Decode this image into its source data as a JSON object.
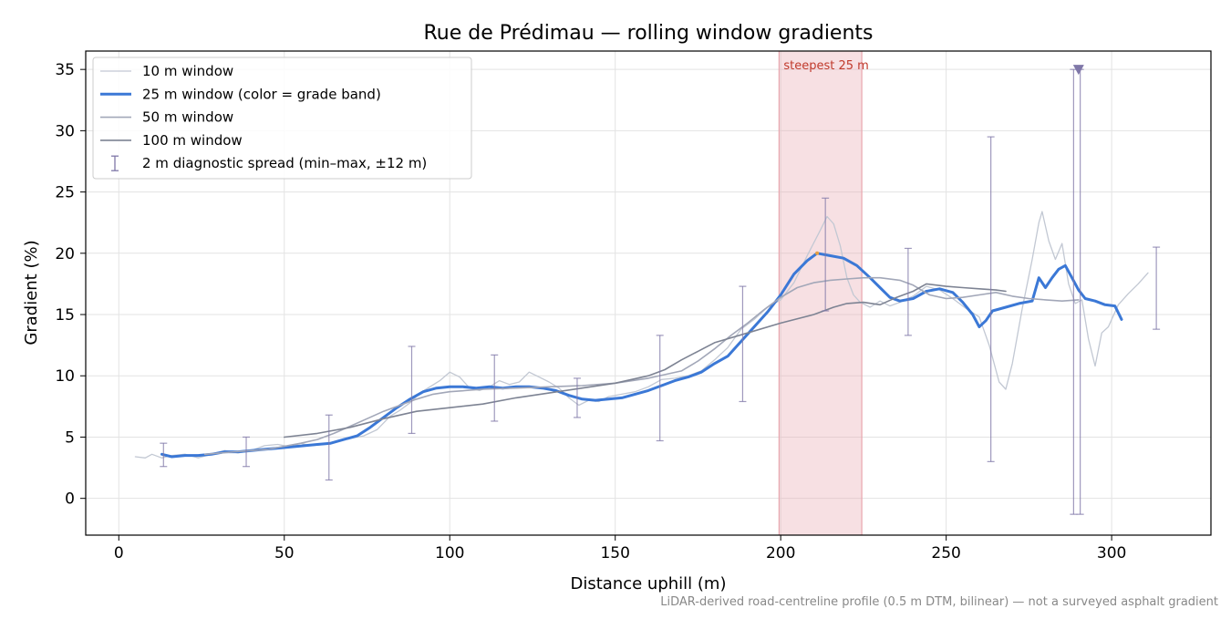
{
  "chart_data": {
    "type": "line",
    "title": "Rue de Prédimau — rolling window gradients",
    "xlabel": "Distance uphill (m)",
    "ylabel": "Gradient (%)",
    "xlim": [
      -10,
      330
    ],
    "ylim": [
      -3,
      36.5
    ],
    "xticks": [
      0,
      50,
      100,
      150,
      200,
      250,
      300
    ],
    "yticks": [
      0,
      5,
      10,
      15,
      20,
      25,
      30,
      35
    ],
    "grid": true,
    "legend_position": "top-left",
    "footnote": "LiDAR-derived road-centreline profile (0.5 m DTM, bilinear) — not a surveyed asphalt gradient",
    "highlight": {
      "x_start": 199.5,
      "x_end": 224.5,
      "label": "steepest 25 m",
      "color": "#e8a6ae"
    },
    "peak_marker": {
      "x": 290,
      "y": 35,
      "color": "#7f77a8"
    },
    "series": [
      {
        "name": "10 m window",
        "color": "#c2c8d3",
        "width": 1.3,
        "points": [
          [
            5,
            3.4
          ],
          [
            8,
            3.3
          ],
          [
            10,
            3.6
          ],
          [
            13,
            3.3
          ],
          [
            16,
            3.5
          ],
          [
            20,
            3.6
          ],
          [
            24,
            3.3
          ],
          [
            28,
            3.6
          ],
          [
            32,
            3.9
          ],
          [
            36,
            3.7
          ],
          [
            40,
            3.9
          ],
          [
            44,
            4.3
          ],
          [
            48,
            4.4
          ],
          [
            52,
            4.2
          ],
          [
            55,
            4.5
          ],
          [
            58,
            4.3
          ],
          [
            62,
            4.4
          ],
          [
            66,
            4.7
          ],
          [
            70,
            4.9
          ],
          [
            74,
            5.1
          ],
          [
            78,
            5.6
          ],
          [
            82,
            6.7
          ],
          [
            85,
            7.2
          ],
          [
            88,
            7.8
          ],
          [
            91,
            8.6
          ],
          [
            94,
            9.1
          ],
          [
            97,
            9.6
          ],
          [
            100,
            10.3
          ],
          [
            103,
            9.9
          ],
          [
            106,
            9.0
          ],
          [
            109,
            8.8
          ],
          [
            112,
            9.1
          ],
          [
            115,
            9.6
          ],
          [
            118,
            9.3
          ],
          [
            121,
            9.5
          ],
          [
            124,
            10.3
          ],
          [
            127,
            9.9
          ],
          [
            130,
            9.5
          ],
          [
            133,
            9.0
          ],
          [
            136,
            8.2
          ],
          [
            139,
            7.6
          ],
          [
            142,
            8.0
          ],
          [
            145,
            7.9
          ],
          [
            148,
            8.3
          ],
          [
            152,
            8.5
          ],
          [
            156,
            8.7
          ],
          [
            160,
            9.1
          ],
          [
            164,
            9.7
          ],
          [
            168,
            9.8
          ],
          [
            172,
            10.0
          ],
          [
            176,
            10.4
          ],
          [
            180,
            11.3
          ],
          [
            184,
            12.3
          ],
          [
            188,
            13.8
          ],
          [
            192,
            14.6
          ],
          [
            196,
            15.6
          ],
          [
            200,
            16.2
          ],
          [
            204,
            17.6
          ],
          [
            208,
            19.8
          ],
          [
            212,
            21.9
          ],
          [
            214,
            23.0
          ],
          [
            216,
            22.4
          ],
          [
            218,
            20.6
          ],
          [
            220,
            18.0
          ],
          [
            222,
            16.6
          ],
          [
            224,
            16.0
          ],
          [
            227,
            15.6
          ],
          [
            230,
            16.1
          ],
          [
            233,
            15.7
          ],
          [
            236,
            16.0
          ],
          [
            240,
            16.5
          ],
          [
            244,
            17.3
          ],
          [
            248,
            17.0
          ],
          [
            252,
            16.3
          ],
          [
            256,
            15.5
          ],
          [
            260,
            14.8
          ],
          [
            263,
            12.5
          ],
          [
            266,
            9.5
          ],
          [
            268,
            8.9
          ],
          [
            270,
            11.0
          ],
          [
            273,
            15.5
          ],
          [
            276,
            19.5
          ],
          [
            278,
            22.5
          ],
          [
            279,
            23.4
          ],
          [
            281,
            21.0
          ],
          [
            283,
            19.5
          ],
          [
            285,
            20.8
          ],
          [
            287,
            17.5
          ],
          [
            289,
            15.9
          ],
          [
            291,
            16.2
          ],
          [
            293,
            13.0
          ],
          [
            295,
            10.8
          ],
          [
            297,
            13.5
          ],
          [
            299,
            14.0
          ],
          [
            302,
            15.8
          ],
          [
            305,
            16.7
          ],
          [
            308,
            17.5
          ],
          [
            311,
            18.4
          ]
        ]
      },
      {
        "name": "25 m window (color = grade band)",
        "color": "#3b78d6",
        "width": 3,
        "points": [
          [
            13,
            3.6
          ],
          [
            16,
            3.4
          ],
          [
            20,
            3.5
          ],
          [
            24,
            3.5
          ],
          [
            28,
            3.6
          ],
          [
            32,
            3.8
          ],
          [
            36,
            3.8
          ],
          [
            40,
            3.9
          ],
          [
            44,
            4.0
          ],
          [
            48,
            4.1
          ],
          [
            52,
            4.2
          ],
          [
            56,
            4.3
          ],
          [
            60,
            4.4
          ],
          [
            64,
            4.5
          ],
          [
            68,
            4.8
          ],
          [
            72,
            5.1
          ],
          [
            76,
            5.8
          ],
          [
            80,
            6.6
          ],
          [
            84,
            7.4
          ],
          [
            88,
            8.1
          ],
          [
            92,
            8.7
          ],
          [
            96,
            9.0
          ],
          [
            100,
            9.1
          ],
          [
            104,
            9.1
          ],
          [
            108,
            9.0
          ],
          [
            112,
            9.1
          ],
          [
            116,
            9.0
          ],
          [
            120,
            9.1
          ],
          [
            124,
            9.1
          ],
          [
            128,
            9.0
          ],
          [
            132,
            8.8
          ],
          [
            136,
            8.4
          ],
          [
            140,
            8.1
          ],
          [
            144,
            8.0
          ],
          [
            148,
            8.1
          ],
          [
            152,
            8.2
          ],
          [
            156,
            8.5
          ],
          [
            160,
            8.8
          ],
          [
            164,
            9.2
          ],
          [
            168,
            9.6
          ],
          [
            172,
            9.9
          ],
          [
            176,
            10.3
          ],
          [
            180,
            11.0
          ],
          [
            184,
            11.6
          ],
          [
            188,
            12.8
          ],
          [
            192,
            14.0
          ],
          [
            196,
            15.2
          ],
          [
            200,
            16.6
          ],
          [
            204,
            18.3
          ],
          [
            208,
            19.4
          ],
          [
            211,
            20.0
          ],
          [
            215,
            19.8
          ],
          [
            219,
            19.6
          ],
          [
            223,
            19.0
          ],
          [
            227,
            18.0
          ],
          [
            230,
            17.2
          ],
          [
            233,
            16.4
          ],
          [
            236,
            16.1
          ],
          [
            240,
            16.3
          ],
          [
            244,
            16.9
          ],
          [
            248,
            17.1
          ],
          [
            252,
            16.8
          ],
          [
            255,
            16.0
          ],
          [
            258,
            15.0
          ],
          [
            260,
            14.0
          ],
          [
            262,
            14.5
          ],
          [
            264,
            15.3
          ],
          [
            268,
            15.6
          ],
          [
            272,
            15.9
          ],
          [
            276,
            16.1
          ],
          [
            278,
            18.0
          ],
          [
            280,
            17.2
          ],
          [
            282,
            18.0
          ],
          [
            284,
            18.7
          ],
          [
            286,
            19.0
          ],
          [
            288,
            18.0
          ],
          [
            290,
            17.0
          ],
          [
            292,
            16.3
          ],
          [
            295,
            16.1
          ],
          [
            298,
            15.8
          ],
          [
            301,
            15.7
          ],
          [
            303,
            14.6
          ]
        ]
      },
      {
        "name": "50 m window",
        "color": "#a2a7b8",
        "width": 1.6,
        "points": [
          [
            26,
            3.6
          ],
          [
            35,
            3.8
          ],
          [
            45,
            4.0
          ],
          [
            55,
            4.5
          ],
          [
            60,
            4.8
          ],
          [
            65,
            5.3
          ],
          [
            70,
            5.9
          ],
          [
            75,
            6.5
          ],
          [
            80,
            7.1
          ],
          [
            85,
            7.6
          ],
          [
            90,
            8.1
          ],
          [
            95,
            8.5
          ],
          [
            100,
            8.7
          ],
          [
            110,
            8.9
          ],
          [
            120,
            9.0
          ],
          [
            130,
            9.1
          ],
          [
            140,
            9.2
          ],
          [
            150,
            9.4
          ],
          [
            160,
            9.8
          ],
          [
            170,
            10.4
          ],
          [
            175,
            11.2
          ],
          [
            180,
            12.2
          ],
          [
            185,
            13.3
          ],
          [
            190,
            14.3
          ],
          [
            195,
            15.4
          ],
          [
            200,
            16.4
          ],
          [
            205,
            17.2
          ],
          [
            210,
            17.6
          ],
          [
            215,
            17.8
          ],
          [
            220,
            17.9
          ],
          [
            225,
            18.0
          ],
          [
            230,
            18.0
          ],
          [
            236,
            17.8
          ],
          [
            240,
            17.4
          ],
          [
            245,
            16.6
          ],
          [
            250,
            16.3
          ],
          [
            255,
            16.4
          ],
          [
            260,
            16.6
          ],
          [
            265,
            16.8
          ],
          [
            270,
            16.5
          ],
          [
            275,
            16.3
          ],
          [
            280,
            16.2
          ],
          [
            285,
            16.1
          ],
          [
            290,
            16.2
          ]
        ]
      },
      {
        "name": "100 m window",
        "color": "#7d8393",
        "width": 1.6,
        "points": [
          [
            50,
            5.0
          ],
          [
            60,
            5.3
          ],
          [
            70,
            5.8
          ],
          [
            80,
            6.5
          ],
          [
            90,
            7.1
          ],
          [
            100,
            7.4
          ],
          [
            110,
            7.7
          ],
          [
            120,
            8.2
          ],
          [
            130,
            8.6
          ],
          [
            140,
            9.0
          ],
          [
            150,
            9.4
          ],
          [
            160,
            10.0
          ],
          [
            165,
            10.5
          ],
          [
            170,
            11.3
          ],
          [
            175,
            12.0
          ],
          [
            180,
            12.7
          ],
          [
            190,
            13.5
          ],
          [
            200,
            14.3
          ],
          [
            210,
            15.0
          ],
          [
            216,
            15.6
          ],
          [
            220,
            15.9
          ],
          [
            225,
            16.0
          ],
          [
            230,
            15.8
          ],
          [
            235,
            16.4
          ],
          [
            240,
            16.9
          ],
          [
            244,
            17.5
          ],
          [
            250,
            17.3
          ],
          [
            255,
            17.2
          ],
          [
            260,
            17.1
          ],
          [
            265,
            17.0
          ],
          [
            268,
            16.9
          ]
        ]
      }
    ],
    "error_bars": {
      "name": "2 m diagnostic spread (min–max, ±12 m)",
      "color": "#7f77a8",
      "items": [
        {
          "x": 13.5,
          "low": 2.6,
          "high": 4.5
        },
        {
          "x": 38.5,
          "low": 2.6,
          "high": 5.0
        },
        {
          "x": 63.5,
          "low": 1.5,
          "high": 6.8
        },
        {
          "x": 88.5,
          "low": 5.3,
          "high": 12.4
        },
        {
          "x": 113.5,
          "low": 6.3,
          "high": 11.7
        },
        {
          "x": 138.5,
          "low": 6.6,
          "high": 9.8
        },
        {
          "x": 163.5,
          "low": 4.7,
          "high": 13.3
        },
        {
          "x": 188.5,
          "low": 7.9,
          "high": 17.3
        },
        {
          "x": 213.5,
          "low": 15.3,
          "high": 24.5
        },
        {
          "x": 238.5,
          "low": 13.3,
          "high": 20.4
        },
        {
          "x": 263.5,
          "low": 3.0,
          "high": 29.5
        },
        {
          "x": 288.5,
          "low": -1.3,
          "high": 35.0
        },
        {
          "x": 290.5,
          "low": -1.3,
          "high": 35.0
        },
        {
          "x": 313.5,
          "low": 13.8,
          "high": 20.5
        }
      ]
    },
    "steep_marker": {
      "x": 211,
      "y": 20.0,
      "color": "#e8a040"
    }
  }
}
